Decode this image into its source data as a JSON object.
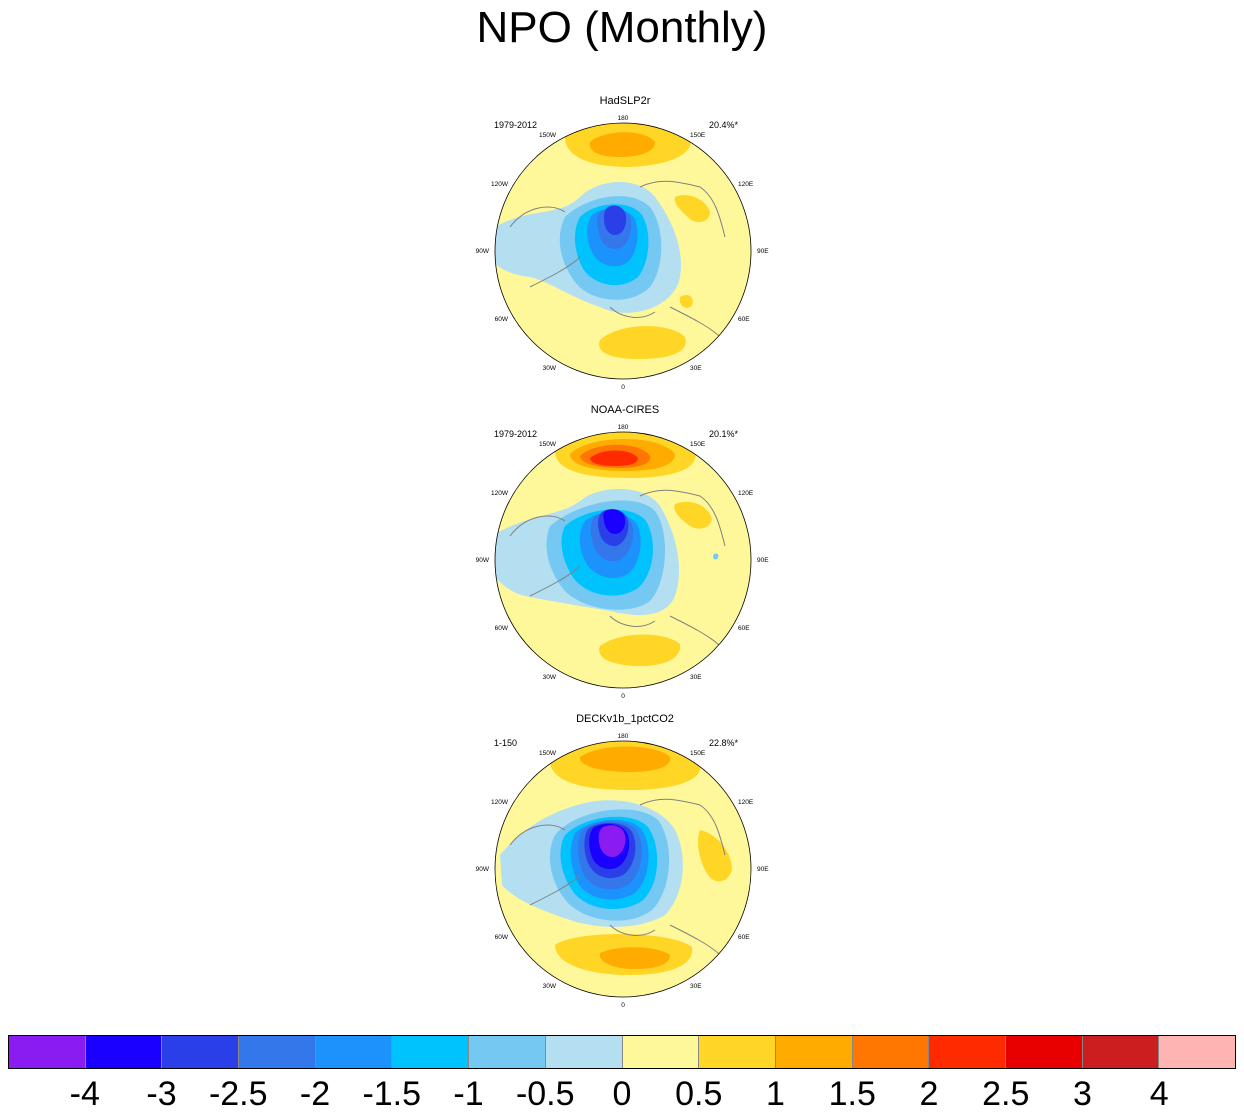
{
  "title": "NPO (Monthly)",
  "panels": [
    {
      "name": "HadSLP2r",
      "years": "1979-2012",
      "variance": "20.4%*"
    },
    {
      "name": "NOAA-CIRES",
      "years": "1979-2012",
      "variance": "20.1%*"
    },
    {
      "name": "DECKv1b_1pctCO2",
      "years": "1-150",
      "variance": "22.8%*"
    }
  ],
  "longitude_labels": {
    "top": "180",
    "bottom": "0",
    "left": "90W",
    "right": "90E",
    "upper_left_1": "150W",
    "upper_left_2": "120W",
    "lower_left_1": "60W",
    "lower_left_2": "30W",
    "upper_right_1": "150E",
    "upper_right_2": "120E",
    "lower_right_1": "60E",
    "lower_right_2": "30E"
  },
  "colorbar": {
    "colors": [
      "#8a1cf2",
      "#1a00ff",
      "#2a3fe8",
      "#3477ea",
      "#1c93fc",
      "#00c3fe",
      "#74c8f2",
      "#b3dff1",
      "#fff89a",
      "#ffd526",
      "#ffab00",
      "#ff7700",
      "#ff2a00",
      "#e80000",
      "#cc1e1e",
      "#ffb4b4"
    ],
    "labels": [
      "-4",
      "-3",
      "-2.5",
      "-2",
      "-1.5",
      "-1",
      "-0.5",
      "0",
      "0.5",
      "1",
      "1.5",
      "2",
      "2.5",
      "3",
      "4"
    ]
  }
}
